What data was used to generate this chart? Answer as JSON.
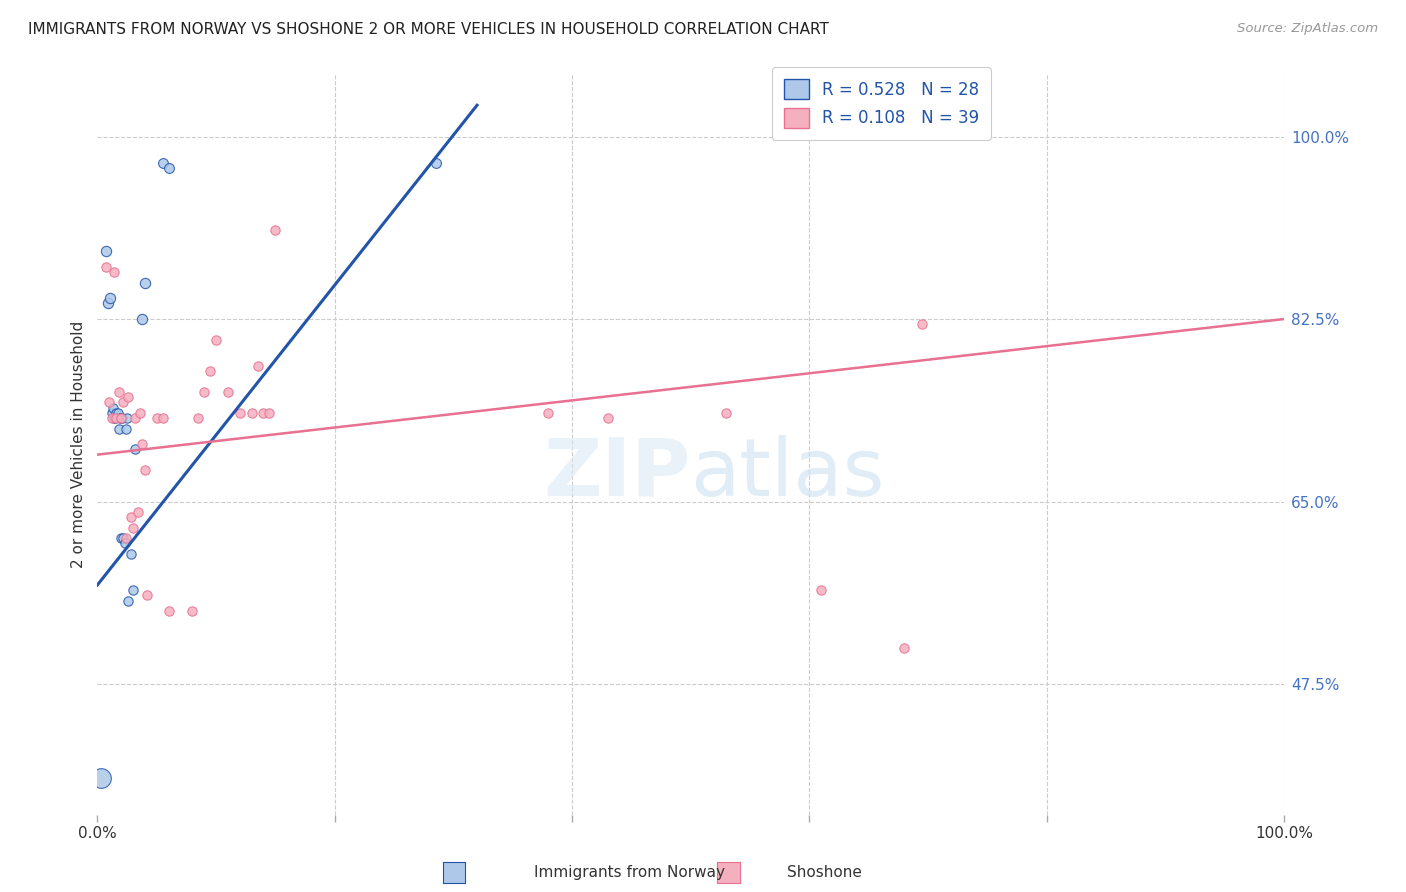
{
  "title": "IMMIGRANTS FROM NORWAY VS SHOSHONE 2 OR MORE VEHICLES IN HOUSEHOLD CORRELATION CHART",
  "source": "Source: ZipAtlas.com",
  "ylabel": "2 or more Vehicles in Household",
  "color_norway": "#adc8e8",
  "color_shoshone": "#f5b0c0",
  "color_line_norway": "#2255aa",
  "color_line_shoshone": "#e87090",
  "legend_label1": "Immigrants from Norway",
  "legend_label2": "Shoshone",
  "R1": 0.528,
  "N1": 28,
  "R2": 0.108,
  "N2": 39,
  "xlim": [
    0.0,
    1.0
  ],
  "ylim": [
    0.35,
    1.06
  ],
  "norway_line_x": [
    0.0,
    0.32
  ],
  "norway_line_y": [
    0.57,
    1.03
  ],
  "shoshone_line_x": [
    0.0,
    1.0
  ],
  "shoshone_line_y": [
    0.695,
    0.825
  ],
  "norway_points": [
    [
      0.003,
      0.385,
      200
    ],
    [
      0.007,
      0.89,
      55
    ],
    [
      0.009,
      0.84,
      55
    ],
    [
      0.011,
      0.845,
      55
    ],
    [
      0.012,
      0.735,
      45
    ],
    [
      0.013,
      0.74,
      45
    ],
    [
      0.014,
      0.73,
      45
    ],
    [
      0.015,
      0.73,
      45
    ],
    [
      0.016,
      0.735,
      45
    ],
    [
      0.017,
      0.735,
      45
    ],
    [
      0.018,
      0.72,
      45
    ],
    [
      0.019,
      0.73,
      45
    ],
    [
      0.02,
      0.73,
      45
    ],
    [
      0.02,
      0.615,
      45
    ],
    [
      0.021,
      0.73,
      45
    ],
    [
      0.022,
      0.615,
      45
    ],
    [
      0.023,
      0.61,
      45
    ],
    [
      0.024,
      0.72,
      45
    ],
    [
      0.025,
      0.73,
      45
    ],
    [
      0.026,
      0.555,
      45
    ],
    [
      0.028,
      0.6,
      45
    ],
    [
      0.03,
      0.565,
      45
    ],
    [
      0.032,
      0.7,
      45
    ],
    [
      0.038,
      0.825,
      55
    ],
    [
      0.04,
      0.86,
      55
    ],
    [
      0.055,
      0.975,
      50
    ],
    [
      0.06,
      0.97,
      50
    ],
    [
      0.285,
      0.975,
      50
    ]
  ],
  "shoshone_points": [
    [
      0.007,
      0.875,
      45
    ],
    [
      0.01,
      0.745,
      45
    ],
    [
      0.012,
      0.73,
      45
    ],
    [
      0.014,
      0.87,
      45
    ],
    [
      0.016,
      0.73,
      45
    ],
    [
      0.018,
      0.755,
      45
    ],
    [
      0.02,
      0.73,
      45
    ],
    [
      0.022,
      0.745,
      45
    ],
    [
      0.024,
      0.615,
      45
    ],
    [
      0.026,
      0.75,
      45
    ],
    [
      0.028,
      0.635,
      45
    ],
    [
      0.03,
      0.625,
      45
    ],
    [
      0.032,
      0.73,
      45
    ],
    [
      0.034,
      0.64,
      45
    ],
    [
      0.036,
      0.735,
      45
    ],
    [
      0.038,
      0.705,
      45
    ],
    [
      0.04,
      0.68,
      45
    ],
    [
      0.042,
      0.56,
      45
    ],
    [
      0.05,
      0.73,
      45
    ],
    [
      0.055,
      0.73,
      45
    ],
    [
      0.06,
      0.545,
      45
    ],
    [
      0.08,
      0.545,
      45
    ],
    [
      0.085,
      0.73,
      45
    ],
    [
      0.09,
      0.755,
      45
    ],
    [
      0.095,
      0.775,
      45
    ],
    [
      0.1,
      0.805,
      45
    ],
    [
      0.11,
      0.755,
      45
    ],
    [
      0.12,
      0.735,
      45
    ],
    [
      0.13,
      0.735,
      45
    ],
    [
      0.135,
      0.78,
      45
    ],
    [
      0.14,
      0.735,
      45
    ],
    [
      0.145,
      0.735,
      45
    ],
    [
      0.15,
      0.91,
      45
    ],
    [
      0.38,
      0.735,
      45
    ],
    [
      0.43,
      0.73,
      45
    ],
    [
      0.53,
      0.735,
      45
    ],
    [
      0.61,
      0.565,
      45
    ],
    [
      0.68,
      0.51,
      45
    ],
    [
      0.695,
      0.82,
      45
    ]
  ]
}
